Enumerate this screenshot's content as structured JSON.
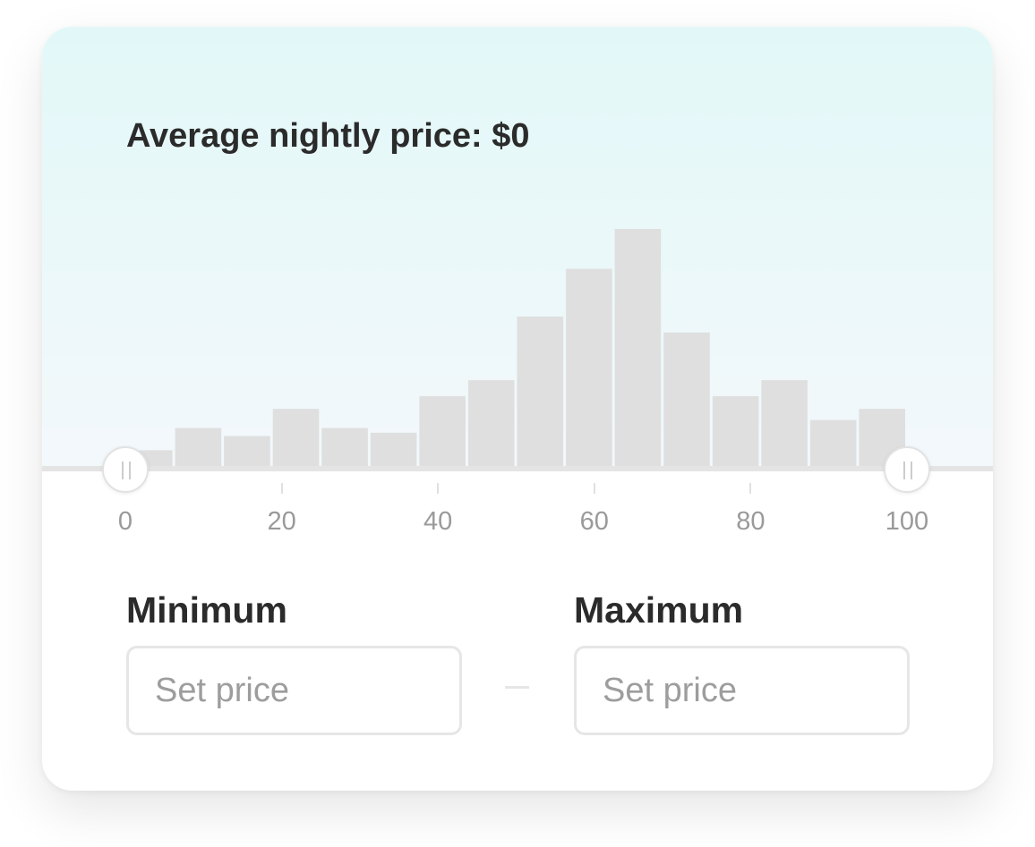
{
  "title": "Average nightly price: $0",
  "chart_data": {
    "type": "bar",
    "x_range": [
      0,
      100
    ],
    "bin_count": 16,
    "values": [
      11,
      25,
      20,
      37,
      25,
      22,
      45,
      55,
      95,
      125,
      150,
      85,
      45,
      55,
      30,
      37
    ],
    "xticks": [
      "0",
      "20",
      "40",
      "60",
      "80",
      "100"
    ],
    "bar_color": "#dfdfdf"
  },
  "slider": {
    "min_value": 0,
    "max_value": 100
  },
  "minimum": {
    "label": "Minimum",
    "placeholder": "Set price"
  },
  "maximum": {
    "label": "Maximum",
    "placeholder": "Set price"
  },
  "colors": {
    "text": "#2b2b2b",
    "muted": "#9a9a9a",
    "border": "#e6e6e6",
    "gradient_top": "#e2f8f8",
    "gradient_bottom": "#f3f8fb"
  }
}
